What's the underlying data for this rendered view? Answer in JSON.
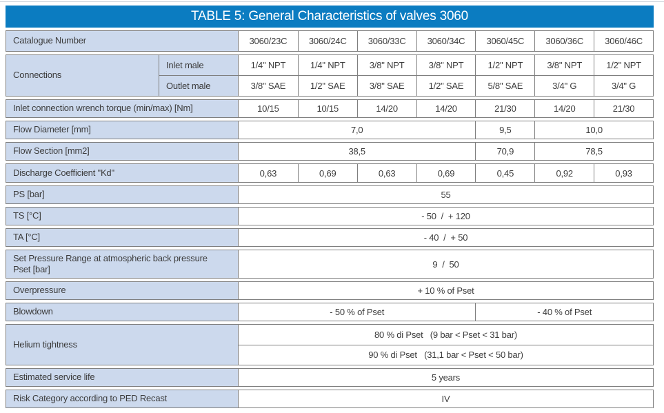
{
  "page": {
    "title": "TABLE 5: General Characteristics of valves 3060"
  },
  "colors": {
    "header_blue": "#0b7cc1",
    "label_bg": "#ccd9ed",
    "border": "#7f7f7f",
    "text": "#3c3c3c"
  },
  "table": {
    "catalogue": {
      "label": "Catalogue Number",
      "values": [
        "3060/23C",
        "3060/24C",
        "3060/33C",
        "3060/34C",
        "3060/45C",
        "3060/36C",
        "3060/46C"
      ]
    },
    "connections": {
      "label": "Connections",
      "inlet": {
        "label": "Inlet male",
        "values": [
          "1/4\" NPT",
          "1/4\" NPT",
          "3/8\" NPT",
          "3/8\" NPT",
          "1/2\" NPT",
          "3/8\" NPT",
          "1/2\" NPT"
        ]
      },
      "outlet": {
        "label": "Outlet male",
        "values": [
          "3/8\" SAE",
          "1/2\" SAE",
          "3/8\" SAE",
          "1/2\" SAE",
          "5/8\" SAE",
          "3/4\" G",
          "3/4\" G"
        ]
      }
    },
    "torque": {
      "label": "Inlet connection wrench torque (min/max) [Nm]",
      "values": [
        "10/15",
        "10/15",
        "14/20",
        "14/20",
        "21/30",
        "14/20",
        "21/30"
      ]
    },
    "flow_diameter": {
      "label": "Flow Diameter [mm]",
      "values": [
        "7,0",
        "9,5",
        "10,0"
      ]
    },
    "flow_section": {
      "label": "Flow Section [mm2]",
      "values": [
        "38,5",
        "70,9",
        "78,5"
      ]
    },
    "discharge": {
      "label": "Discharge Coefficient \"Kd\"",
      "values": [
        "0,63",
        "0,69",
        "0,63",
        "0,69",
        "0,45",
        "0,92",
        "0,93"
      ]
    },
    "ps": {
      "label": "PS [bar]",
      "value": "55"
    },
    "ts": {
      "label": "TS [°C]",
      "value": "- 50  /  + 120"
    },
    "ta": {
      "label": "TA [°C]",
      "value": "- 40  /  + 50"
    },
    "set_pressure": {
      "label": "Set Pressure Range at atmospheric back pressure\nPset [bar]",
      "value": "9  /  50"
    },
    "overpressure": {
      "label": "Overpressure",
      "value": "+ 10 % of Pset"
    },
    "blowdown": {
      "label": "Blowdown",
      "values": [
        "- 50 % of Pset",
        "- 40 % of Pset"
      ]
    },
    "helium": {
      "label": "Helium tightness",
      "values": [
        "80 % di Pset   (9 bar < Pset < 31 bar)",
        "90 % di Pset   (31,1 bar < Pset < 50 bar)"
      ]
    },
    "service_life": {
      "label": "Estimated service life",
      "value": "5 years"
    },
    "risk": {
      "label": "Risk Category according to PED Recast",
      "value": "IV"
    }
  }
}
